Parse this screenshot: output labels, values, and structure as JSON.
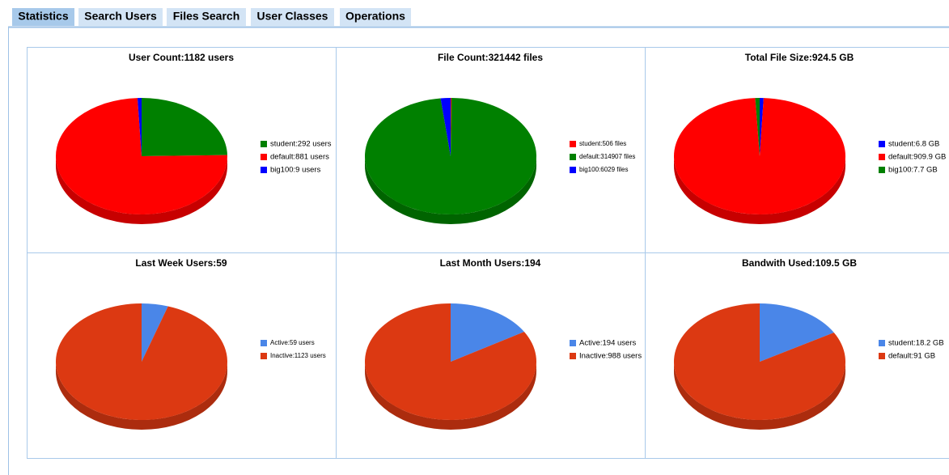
{
  "tabs": [
    "Statistics",
    "Search Users",
    "Files Search",
    "User Classes",
    "Operations"
  ],
  "chart_data": [
    {
      "type": "pie",
      "title": "User Count:1182 users",
      "categories": [
        "student:292 users",
        "default:881 users",
        "big100:9 users"
      ],
      "values": [
        292,
        881,
        9
      ],
      "colors": [
        "#008000",
        "#ff0000",
        "#0000ff"
      ]
    },
    {
      "type": "pie",
      "title": "File Count:321442 files",
      "categories": [
        "student:506 files",
        "default:314907 files",
        "big100:6029 files"
      ],
      "values": [
        506,
        314907,
        6029
      ],
      "colors": [
        "#ff0000",
        "#008000",
        "#0000ff"
      ]
    },
    {
      "type": "pie",
      "title": "Total File Size:924.5 GB",
      "categories": [
        "student:6.8 GB",
        "default:909.9 GB",
        "big100:7.7 GB"
      ],
      "values": [
        6.8,
        909.9,
        7.7
      ],
      "colors": [
        "#0000ff",
        "#ff0000",
        "#008000"
      ]
    },
    {
      "type": "pie",
      "title": "Last Week Users:59",
      "categories": [
        "Active:59 users",
        "Inactive:1123 users"
      ],
      "values": [
        59,
        1123
      ],
      "colors": [
        "#4a86e8",
        "#dc3912"
      ]
    },
    {
      "type": "pie",
      "title": "Last Month Users:194",
      "categories": [
        "Active:194 users",
        "Inactive:988 users"
      ],
      "values": [
        194,
        988
      ],
      "colors": [
        "#4a86e8",
        "#dc3912"
      ]
    },
    {
      "type": "pie",
      "title": "Bandwith Used:109.5 GB",
      "categories": [
        "student:18.2 GB",
        "default:91 GB"
      ],
      "values": [
        18.2,
        91
      ],
      "colors": [
        "#4a86e8",
        "#dc3912"
      ]
    }
  ]
}
